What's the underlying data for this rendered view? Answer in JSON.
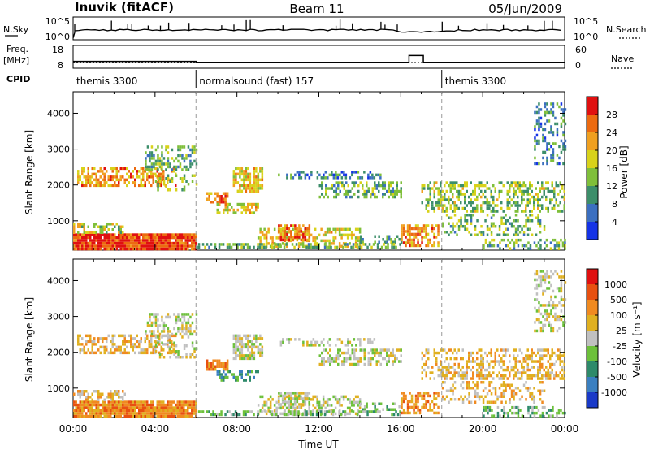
{
  "header": {
    "station": "Inuvik (fitACF)",
    "beam": "Beam 11",
    "date": "05/Jun/2009"
  },
  "side_labels": {
    "nsky": "N.Sky",
    "nsearch": "N.Search",
    "freq": "Freq.",
    "freq_unit": "[MHz]",
    "nave": "Nave",
    "cpid": "CPID"
  },
  "chart_data": [
    {
      "type": "line",
      "name": "noise",
      "y_ticks_left": [
        "10^5",
        "10^0"
      ],
      "y_ticks_right": [
        "10^5",
        "10^0"
      ]
    },
    {
      "type": "line",
      "name": "frequency-nave",
      "ylim_left": [
        8,
        18
      ],
      "ylim_right": [
        0,
        60
      ],
      "y_ticks_left": [
        "18",
        "8"
      ],
      "y_ticks_right": [
        "60",
        "0"
      ],
      "freq_steps": [
        [
          0,
          11.0
        ],
        [
          6,
          10.6
        ],
        [
          16,
          10.6
        ],
        [
          16.4,
          13.6
        ],
        [
          17,
          13.6
        ],
        [
          17.1,
          10.6
        ],
        [
          24,
          10.6
        ]
      ],
      "nave_steps": [
        [
          0,
          15
        ],
        [
          6,
          15
        ],
        [
          24,
          15
        ]
      ]
    },
    {
      "type": "table",
      "name": "cpid",
      "segments": [
        {
          "label": "themis 3300",
          "start": 0,
          "end": 6
        },
        {
          "label": "normalsound (fast) 157",
          "start": 6,
          "end": 18
        },
        {
          "label": "themis 3300",
          "start": 18,
          "end": 24
        }
      ]
    },
    {
      "type": "heatmap",
      "name": "power",
      "ylabel": "Slant Range [km]",
      "xlim": [
        0,
        24
      ],
      "ylim": [
        180,
        4600
      ],
      "y_ticks": [
        1000,
        2000,
        3000,
        4000
      ],
      "colorbar_label": "Power [dB]",
      "colorbar_ticks": [
        "28",
        "24",
        "20",
        "16",
        "12",
        "8",
        "4"
      ],
      "colors": [
        "#1533e6",
        "#3b6fc0",
        "#3c8e6a",
        "#7fbf3a",
        "#d8d21a",
        "#f0a020",
        "#ec6a10",
        "#e01010"
      ]
    },
    {
      "type": "heatmap",
      "name": "velocity",
      "ylabel": "Slant Range [km]",
      "xlabel": "Time UT",
      "xlim": [
        0,
        24
      ],
      "ylim": [
        180,
        4600
      ],
      "y_ticks": [
        1000,
        2000,
        3000,
        4000
      ],
      "x_tick_labels": [
        "00:00",
        "04:00",
        "08:00",
        "12:00",
        "16:00",
        "20:00",
        "00:00"
      ],
      "colorbar_label": "Velocity [m s⁻¹]",
      "colorbar_ticks": [
        "1000",
        "500",
        "100",
        "25",
        "-25",
        "-100",
        "-500",
        "-1000"
      ],
      "colors": [
        "#1a3ac8",
        "#3a7fc0",
        "#2e8a6a",
        "#6cc03a",
        "#c0c0c0",
        "#e0b020",
        "#f08a20",
        "#e85010",
        "#e01010"
      ]
    }
  ]
}
